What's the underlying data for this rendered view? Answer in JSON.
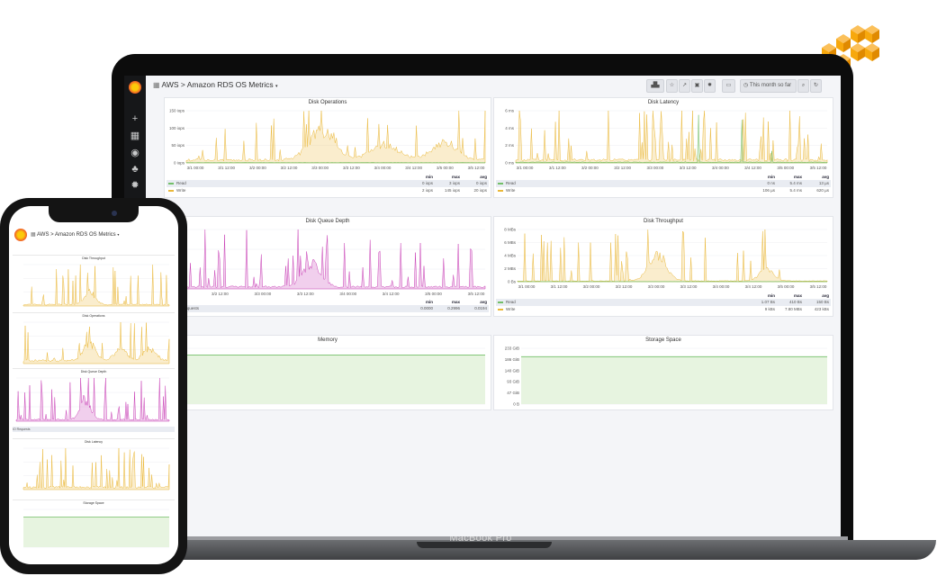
{
  "device": {
    "laptop_label": "MacBook Pro"
  },
  "brand": {
    "aws_color": "#f7a80d",
    "grafana_orange": "#f05a28",
    "grafana_yellow": "#fbca0a"
  },
  "colors": {
    "read": "#73bf69",
    "write": "#eab839",
    "queue": "#c940b6",
    "area": "#e7f4e0"
  },
  "topbar": {
    "breadcrumb_root": "AWS",
    "separator": ">",
    "dashboard_title": "Amazon RDS OS Metrics",
    "time_range": "This month so far",
    "buttons": [
      "bar-chart-icon",
      "star-icon",
      "share-icon",
      "save-icon",
      "gear-icon",
      "monitor-icon",
      "clock-icon",
      "search-icon"
    ]
  },
  "sidebar": {
    "icons": [
      "plus-icon",
      "grid-icon",
      "compass-icon",
      "bell-icon",
      "gear-icon"
    ]
  },
  "panels": {
    "disk_operations": {
      "title": "Disk Operations",
      "y_ticks": [
        "150 iops",
        "100 iops",
        "50 iops",
        "0 iops"
      ],
      "x_ticks": [
        "3/1 00:00",
        "3/1 12:00",
        "3/2 00:00",
        "3/2 12:00",
        "3/3 00:00",
        "3/3 12:00",
        "3/4 00:00",
        "3/4 12:00",
        "3/5 00:00",
        "3/5 12:00"
      ],
      "legend_headers": [
        "min",
        "max",
        "avg"
      ],
      "legend": [
        {
          "name": "Read",
          "min": "0 iops",
          "max": "3 iops",
          "avg": "0 iops"
        },
        {
          "name": "Write",
          "min": "2 iops",
          "max": "145 iops",
          "avg": "20 iops"
        }
      ]
    },
    "disk_latency": {
      "title": "Disk Latency",
      "y_ticks": [
        "6 ms",
        "4 ms",
        "2 ms",
        "0 ms"
      ],
      "x_ticks": [
        "3/1 00:00",
        "3/1 12:00",
        "3/2 00:00",
        "3/2 12:00",
        "3/3 00:00",
        "3/3 12:00",
        "3/4 00:00",
        "3/4 12:00",
        "3/5 00:00",
        "3/5 12:00"
      ],
      "legend_headers": [
        "min",
        "max",
        "avg"
      ],
      "legend": [
        {
          "name": "Read",
          "min": "0 ns",
          "max": "5.4 ms",
          "avg": "13 µs"
        },
        {
          "name": "Write",
          "min": "106 µs",
          "max": "5.4 ms",
          "avg": "620 µs"
        }
      ]
    },
    "disk_queue_depth": {
      "title": "Disk Queue Depth",
      "x_ticks": [
        "3/2 00:00",
        "3/2 12:00",
        "3/3 00:00",
        "3/3 12:00",
        "3/4 00:00",
        "3/4 12:00",
        "3/5 00:00",
        "3/5 12:00"
      ],
      "legend_headers": [
        "min",
        "max",
        "avg"
      ],
      "legend": [
        {
          "name": "IO Requests",
          "min": "0.0000",
          "max": "0.2996",
          "avg": "0.0194"
        }
      ]
    },
    "disk_throughput": {
      "title": "Disk Throughput",
      "y_ticks": [
        "8 MBs",
        "6 MBs",
        "4 MBs",
        "2 MBs",
        "0 Bs"
      ],
      "x_ticks": [
        "3/1 00:00",
        "3/1 12:00",
        "3/2 00:00",
        "3/2 12:00",
        "3/3 00:00",
        "3/3 12:00",
        "3/4 00:00",
        "3/4 12:00",
        "3/5 00:00",
        "3/5 12:00"
      ],
      "legend_headers": [
        "min",
        "max",
        "avg"
      ],
      "legend": [
        {
          "name": "Read",
          "min": "1.07 Bs",
          "max": "410 Bs",
          "avg": "150 Bs"
        },
        {
          "name": "Write",
          "min": "9 kBs",
          "max": "7.80 MBs",
          "avg": "423 kBs"
        }
      ]
    },
    "memory": {
      "title": "Memory"
    },
    "storage_space": {
      "title": "Storage Space",
      "y_ticks": [
        "233 GiB",
        "186 GiB",
        "140 GiB",
        "93 GiB",
        "47 GiB",
        "0 B"
      ]
    }
  },
  "phone": {
    "breadcrumb_root": "AWS",
    "separator": ">",
    "dashboard_title": "Amazon RDS OS Metrics",
    "panel_titles": [
      "Disk Throughput",
      "Disk Operations",
      "Disk Queue Depth",
      "Disk Latency",
      "Storage Space"
    ],
    "queue_legend_name": "IO Requests"
  }
}
